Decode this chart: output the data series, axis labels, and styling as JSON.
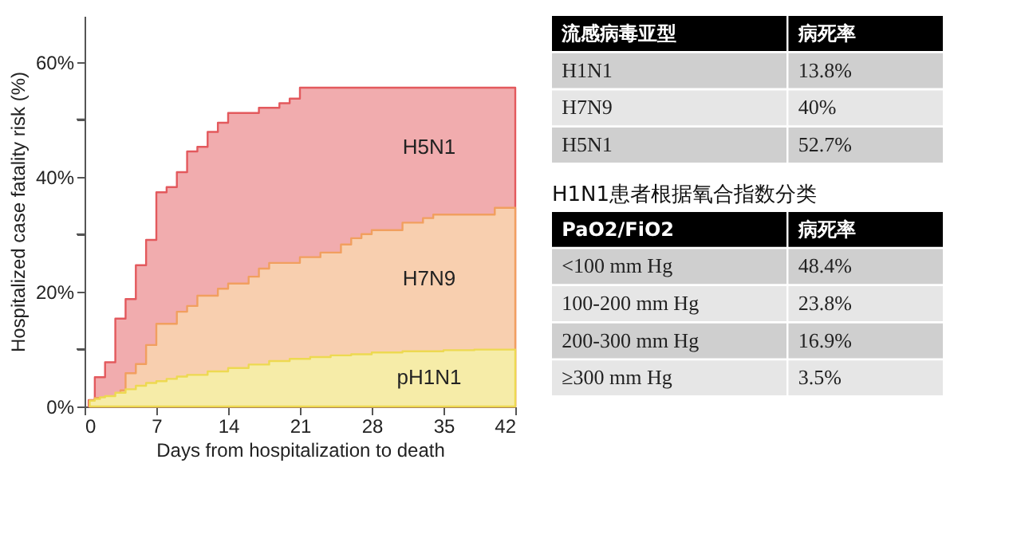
{
  "chart_data": [
    {
      "type": "step",
      "xlabel": "Days from hospitalization to death",
      "ylabel": "Hospitalized case fatality risk (%)",
      "xlim": [
        0,
        42
      ],
      "xticks": [
        0,
        7,
        14,
        21,
        28,
        35,
        42
      ],
      "ylim": [
        0,
        68
      ],
      "yticks": [
        {
          "value": 0,
          "label": "0%"
        },
        {
          "value": 10,
          "label": null
        },
        {
          "value": 20,
          "label": "20%"
        },
        {
          "value": 30,
          "label": null
        },
        {
          "value": 40,
          "label": "40%"
        },
        {
          "value": 50,
          "label": null
        },
        {
          "value": 60,
          "label": "60%"
        }
      ],
      "grid": false,
      "series": [
        {
          "name": "H5N1",
          "type": "area",
          "color": "#f1acae",
          "x": [
            0.4,
            1,
            2,
            3,
            4,
            5,
            6,
            7,
            8,
            9,
            10,
            11,
            12,
            13,
            14,
            17,
            19,
            20,
            21,
            42
          ],
          "values": [
            1.1,
            5.1,
            7.7,
            15.3,
            18.7,
            24.6,
            29,
            37.3,
            38.2,
            40.8,
            44.4,
            45.2,
            47.8,
            49.4,
            51.1,
            52,
            52.8,
            53.6,
            55.5,
            55.5
          ]
        },
        {
          "name": "H7N9",
          "type": "area",
          "color": "#f8cfaf",
          "x": [
            0.5,
            1,
            3.5,
            4,
            5,
            6,
            7,
            9,
            10,
            11,
            13,
            14,
            16,
            17,
            18,
            21,
            23,
            25,
            26,
            27,
            28,
            31,
            33,
            34,
            40,
            42
          ],
          "values": [
            1,
            1.5,
            2.8,
            5.8,
            7.4,
            10.7,
            14.4,
            16.5,
            17.5,
            19.3,
            20.5,
            21.4,
            22.6,
            24,
            25,
            26,
            26.8,
            28.2,
            29.3,
            30,
            30.7,
            32,
            32.8,
            33.4,
            34.6,
            34.6
          ]
        },
        {
          "name": "pH1N1",
          "type": "area",
          "color": "#f6eca8",
          "x": [
            0.5,
            1,
            1.5,
            2,
            3,
            4,
            5,
            6,
            7,
            8,
            9,
            10,
            12,
            14,
            16,
            18,
            20,
            22,
            24,
            26,
            28,
            31,
            35,
            38,
            42
          ],
          "values": [
            1,
            1.3,
            1.6,
            1.8,
            2.4,
            3,
            3.6,
            4.1,
            4.4,
            4.8,
            5.2,
            5.5,
            6.1,
            6.7,
            7.3,
            7.9,
            8.3,
            8.6,
            8.9,
            9.1,
            9.4,
            9.6,
            9.8,
            9.9,
            9.9
          ]
        }
      ]
    },
    {
      "type": "other",
      "annotations": [
        "流感病毒亚型",
        "病死率"
      ],
      "categories": [
        "H1N1",
        "H7N9",
        "H5N1"
      ],
      "value_labels": [
        "13.8%",
        "40%",
        "52.7%"
      ]
    },
    {
      "type": "other",
      "title": "H1N1患者根据氧合指数分类",
      "annotations": [
        "PaO2/FiO2",
        "病死率"
      ],
      "categories": [
        "<100 mm Hg",
        "100-200 mm Hg",
        "200-300 mm Hg",
        "≥300 mm Hg"
      ],
      "value_labels": [
        "48.4%",
        "23.8%",
        "16.9%",
        "3.5%"
      ]
    }
  ]
}
